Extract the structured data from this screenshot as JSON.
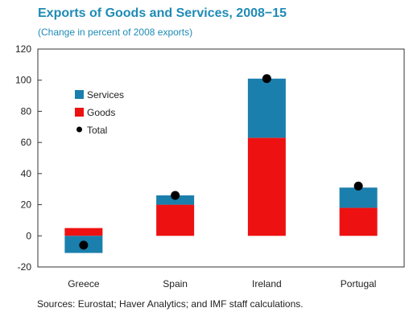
{
  "header": {
    "title": "Exports of Goods and Services, 2008−15",
    "subtitle": "(Change in percent of 2008 exports)"
  },
  "footer": {
    "source": "Sources: Eurostat; Haver Analytics; and IMF staff calculations."
  },
  "colors": {
    "services": "#1a7fac",
    "goods": "#ee1111",
    "total": "#000000",
    "accent": "#1f8bb5"
  },
  "chart_data": {
    "type": "bar",
    "stacked": true,
    "title": "Exports of Goods and Services, 2008−15",
    "subtitle": "(Change in percent of 2008 exports)",
    "categories": [
      "Greece",
      "Spain",
      "Ireland",
      "Portugal"
    ],
    "series": [
      {
        "name": "Services",
        "type": "bar",
        "values": [
          -11,
          6,
          38,
          13
        ]
      },
      {
        "name": "Goods",
        "type": "bar",
        "values": [
          5,
          20,
          63,
          18
        ]
      },
      {
        "name": "Total",
        "type": "scatter",
        "values": [
          -6,
          26,
          101,
          32
        ]
      }
    ],
    "ylim": [
      -20,
      120
    ],
    "yticks": [
      -20,
      0,
      20,
      40,
      60,
      80,
      100,
      120
    ],
    "grid": false,
    "legend_position": "top-left"
  }
}
